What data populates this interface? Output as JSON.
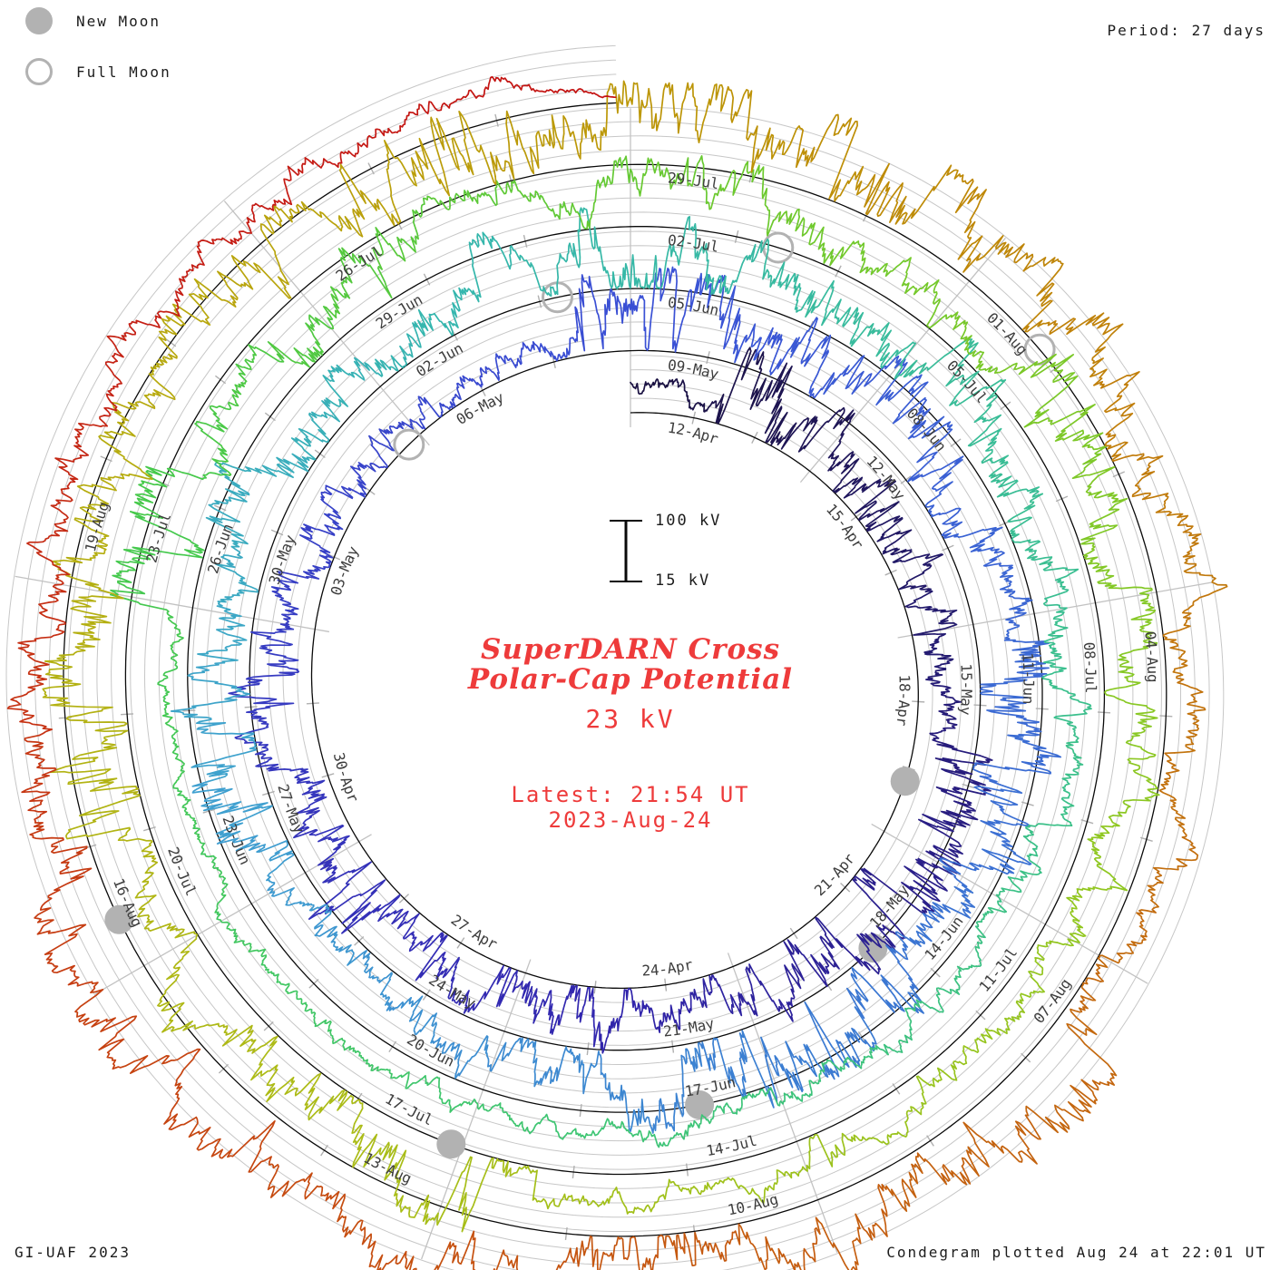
{
  "header": {
    "period_label": "Period: 27 days"
  },
  "legend": {
    "new_moon": "New Moon",
    "full_moon": "Full Moon"
  },
  "footer": {
    "left": "GI-UAF 2023",
    "right": "Condegram plotted Aug 24 at 22:01 UT"
  },
  "center": {
    "title_line1": "SuperDARN Cross",
    "title_line2": "Polar-Cap Potential",
    "latest_value": "23 kV",
    "latest_time": "Latest: 21:54 UT",
    "latest_date": "2023-Aug-24"
  },
  "scale": {
    "top_label": "100 kV",
    "bottom_label": "15 kV"
  },
  "colors": {
    "accent_red_text": "#ee3b3b",
    "moon_gray": "#b2b2b2",
    "grid_gray": "#c7c7c7",
    "spoke_gray": "#c2c2c2",
    "tick_gray": "#b0b0b0",
    "baseline_black": "#0a0a0a",
    "label_gray": "#3d3d3d"
  },
  "chart_data": {
    "type": "line",
    "subtype": "condegram-spiral-time-series",
    "quantity": "SuperDARN cross polar-cap potential (kV)",
    "title": "SuperDARN Cross Polar-Cap Potential",
    "period_days": 27,
    "start_date_label": "12-Apr",
    "end": {
      "date_label": "2023-Aug-24",
      "time_ut": "21:54",
      "days_since_start": 134.9
    },
    "latest_value_kv": 23,
    "value_scale_kv": {
      "baseline": 15,
      "reference": 100,
      "gridline_step": 20,
      "typical_range": [
        15,
        130
      ]
    },
    "date_labels": [
      "12-Apr",
      "15-Apr",
      "18-Apr",
      "21-Apr",
      "24-Apr",
      "27-Apr",
      "30-Apr",
      "03-May",
      "06-May",
      "09-May",
      "12-May",
      "15-May",
      "18-May",
      "21-May",
      "24-May",
      "27-May",
      "30-May",
      "02-Jun",
      "05-Jun",
      "08-Jun",
      "11-Jun",
      "14-Jun",
      "17-Jun",
      "20-Jun",
      "23-Jun",
      "26-Jun",
      "29-Jun",
      "02-Jul",
      "05-Jul",
      "08-Jul",
      "11-Jul",
      "14-Jul",
      "17-Jul",
      "20-Jul",
      "23-Jul",
      "26-Jul",
      "29-Jul",
      "01-Aug",
      "04-Aug",
      "07-Aug",
      "10-Aug",
      "13-Aug",
      "16-Aug",
      "19-Aug"
    ],
    "label_step_days": 3,
    "moon_events": {
      "new_moon_days": [
        8.2,
        37.3,
        66.8,
        96.1,
        126.4
      ],
      "full_moon_days": [
        23.8,
        53.2,
        82.4,
        111.8
      ]
    },
    "colormap_stops": [
      [
        0,
        "#191140"
      ],
      [
        14,
        "#3226ae"
      ],
      [
        27,
        "#3a50d5"
      ],
      [
        38,
        "#3b79d2"
      ],
      [
        46,
        "#3fa0d0"
      ],
      [
        52,
        "#35b6ae"
      ],
      [
        58,
        "#39bd97"
      ],
      [
        68,
        "#3ec573"
      ],
      [
        76,
        "#46c94a"
      ],
      [
        82,
        "#6cc92e"
      ],
      [
        90,
        "#93c720"
      ],
      [
        98,
        "#aeba16"
      ],
      [
        104,
        "#b8a90e"
      ],
      [
        109,
        "#bd9206"
      ],
      [
        113,
        "#c17c0b"
      ],
      [
        118,
        "#c4660f"
      ],
      [
        123,
        "#c65010"
      ],
      [
        127,
        "#c63a12"
      ],
      [
        131,
        "#c52015"
      ],
      [
        135,
        "#c41212"
      ]
    ],
    "series_note": "High-cadence noisy potential trace spiraling outward from 12-Apr (inner) to 24-Aug (outer); values read as radial offset above each 15 kV baseline; exact samples not resolvable, reconstructed with seeded noise.",
    "seed": 7,
    "legend_position": "top-left",
    "grid": true
  }
}
